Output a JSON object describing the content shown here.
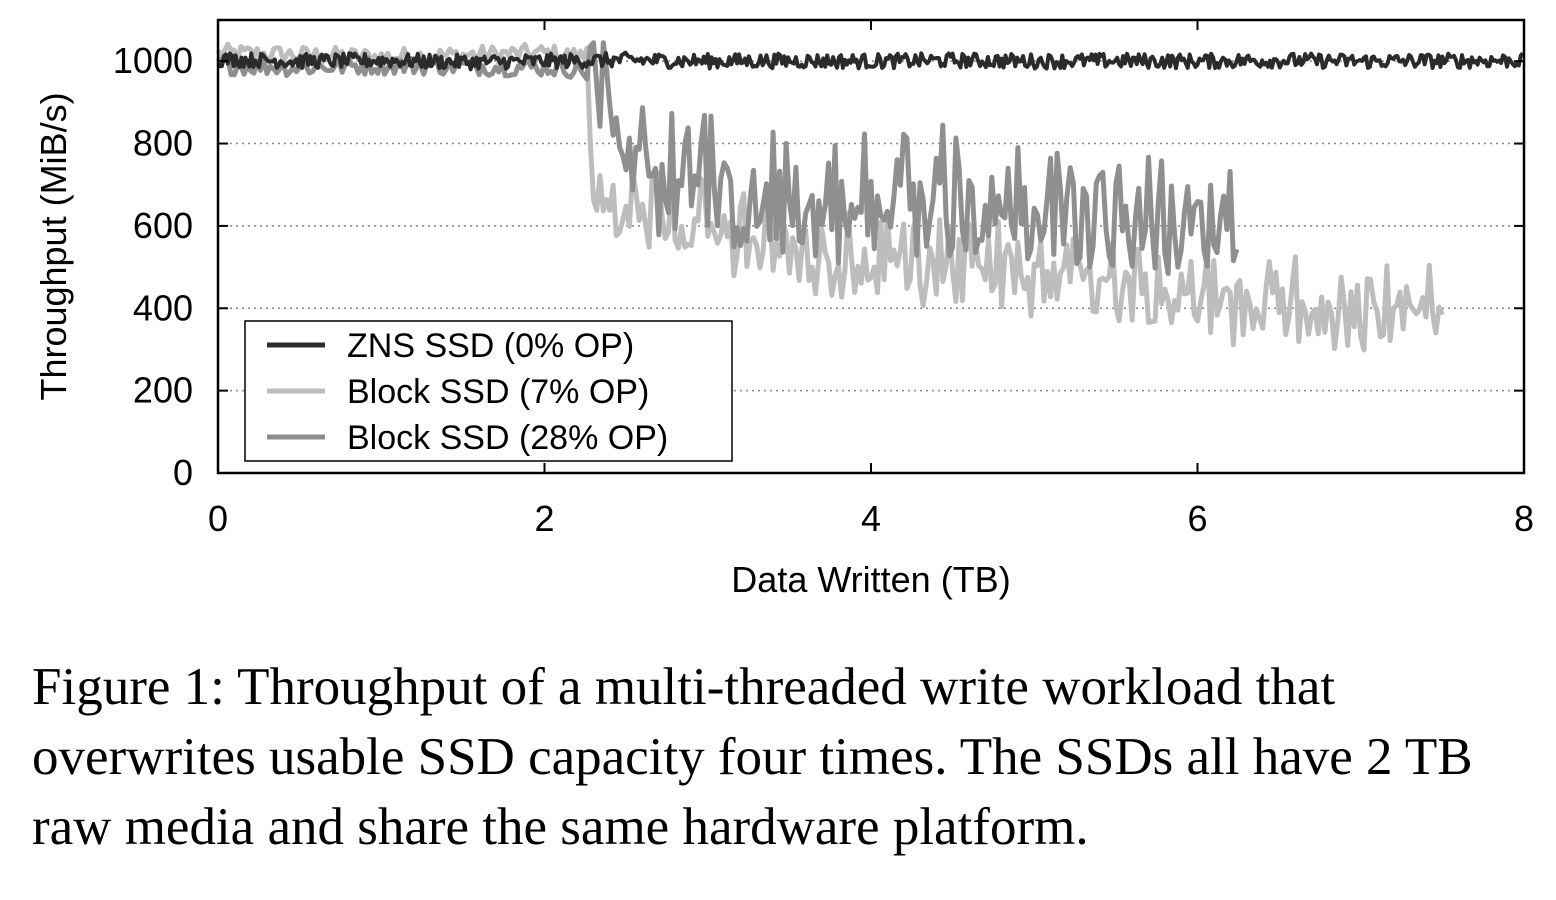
{
  "caption": "Figure 1: Throughput of a multi-threaded write workload that overwrites usable SSD capacity four times. The SSDs all have 2 TB raw media and share the same hardware platform.",
  "chart_data": {
    "type": "line",
    "title": "",
    "xlabel": "Data Written (TB)",
    "ylabel": "Throughput (MiB/s)",
    "xlim": [
      0,
      8
    ],
    "ylim": [
      0,
      1100
    ],
    "xticks": [
      0,
      2,
      4,
      6,
      8
    ],
    "xtick_labels": [
      "0",
      "2",
      "4",
      "6",
      "8"
    ],
    "yticks": [
      0,
      200,
      400,
      600,
      800,
      1000
    ],
    "ytick_labels": [
      "0",
      "200",
      "400",
      "600",
      "800",
      "1000"
    ],
    "grid": "horizontal dotted",
    "legend_position": "bottom-left",
    "series": [
      {
        "name": "ZNS SSD (0% OP)",
        "color": "#2b2b2b",
        "x": [
          0,
          0.5,
          1.0,
          1.5,
          2.0,
          2.5,
          3.0,
          3.5,
          4.0,
          4.5,
          5.0,
          5.5,
          6.0,
          6.5,
          7.0,
          7.5,
          8.0
        ],
        "y": [
          1005,
          1000,
          1002,
          998,
          1000,
          1003,
          1000,
          1001,
          1000,
          1002,
          1000,
          1001,
          1000,
          1002,
          1000,
          1001,
          1002
        ]
      },
      {
        "name": "Block SSD (7% OP)",
        "color": "#bdbdbd",
        "x": [
          0,
          0.5,
          1.0,
          1.5,
          2.0,
          2.25,
          2.3,
          2.4,
          2.5,
          2.75,
          3.0,
          3.25,
          3.5,
          3.75,
          4.0,
          4.25,
          4.5,
          4.75,
          5.0,
          5.25,
          5.5,
          5.75,
          6.0,
          6.25,
          6.5,
          6.75,
          7.0,
          7.25,
          7.5
        ],
        "y": [
          1020,
          1015,
          1010,
          1015,
          1020,
          1010,
          620,
          640,
          620,
          590,
          580,
          530,
          520,
          490,
          470,
          470,
          480,
          470,
          450,
          430,
          440,
          440,
          410,
          380,
          390,
          360,
          340,
          370,
          350
        ]
      },
      {
        "name": "Block SSD (28% OP)",
        "color": "#8f8f8f",
        "x": [
          0,
          0.5,
          1.0,
          1.5,
          2.0,
          2.25,
          2.4,
          2.5,
          2.75,
          3.0,
          3.25,
          3.5,
          3.75,
          4.0,
          4.25,
          4.5,
          4.75,
          5.0,
          5.25,
          5.5,
          5.75,
          6.0,
          6.25
        ],
        "y": [
          990,
          985,
          990,
          988,
          985,
          980,
          880,
          700,
          680,
          660,
          640,
          630,
          620,
          610,
          610,
          640,
          620,
          610,
          600,
          610,
          590,
          600,
          620
        ]
      }
    ]
  }
}
